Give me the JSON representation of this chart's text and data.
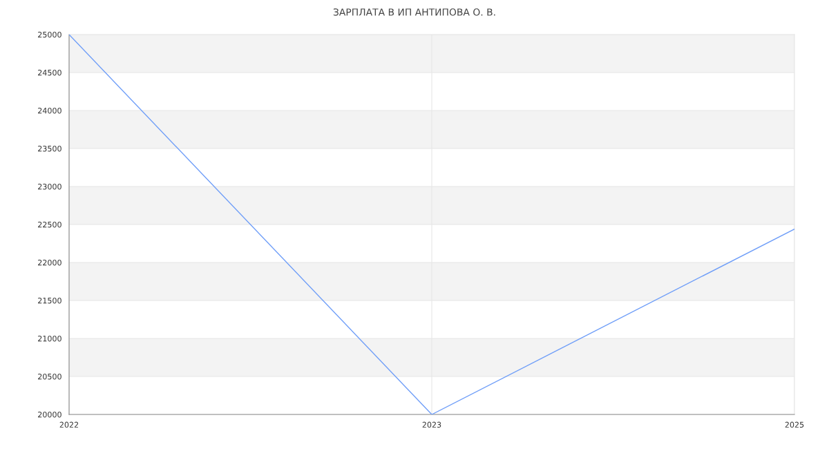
{
  "chart_data": {
    "type": "line",
    "title": "ЗАРПЛАТА В ИП АНТИПОВА О. В.",
    "categories": [
      "2022",
      "2023",
      "2025"
    ],
    "series": [
      {
        "color": "#6f9ef8",
        "values": [
          25000,
          20000,
          22440
        ]
      }
    ],
    "ylim": [
      20000,
      25000
    ],
    "yticks": [
      20000,
      20500,
      21000,
      21500,
      22000,
      22500,
      23000,
      23500,
      24000,
      24500,
      25000
    ],
    "grid": true,
    "marker": "none",
    "line_style": "solid"
  }
}
